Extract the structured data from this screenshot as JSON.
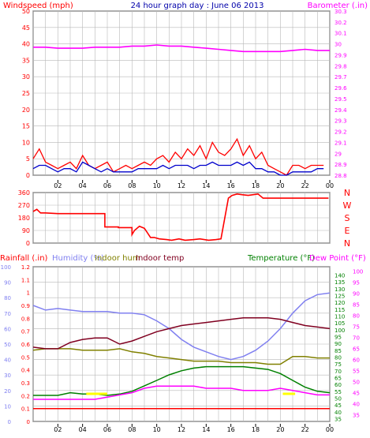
{
  "colors": {
    "windspeed": "#ff0000",
    "windspeed_avg": "#0000cc",
    "barometer": "#ff00ff",
    "direction": "#ff0000",
    "rainfall": "#ff0000",
    "humidity": "#8080f0",
    "indoor_hum": "#808000",
    "indoor_temp": "#800020",
    "temperature": "#008000",
    "dew_point": "#ff00ff",
    "grid": "#b8b8b8",
    "axis": "#000000",
    "title": "#0000aa",
    "rain_markers": "#ffff00"
  },
  "chart_data": [
    {
      "type": "line",
      "title": "24 hour graph day : June 06 2013",
      "left_label": "Windspeed (mph)",
      "right_label": "Barometer (.in)",
      "x_ticks": [
        "02",
        "04",
        "06",
        "08",
        "10",
        "12",
        "14",
        "16",
        "18",
        "20",
        "22",
        "00"
      ],
      "y_left_ticks": [
        "0",
        "5",
        "10",
        "15",
        "20",
        "25",
        "30",
        "35",
        "40",
        "45",
        "50"
      ],
      "y_left_range": [
        0,
        50
      ],
      "y_right_ticks": [
        "28.8",
        "28.9",
        "29",
        "29.1",
        "29.2",
        "29.3",
        "29.4",
        "29.5",
        "29.6",
        "29.7",
        "29.8",
        "29.9",
        "30",
        "30.1",
        "30.2",
        "30.3"
      ],
      "y_right_range": [
        28.8,
        30.3
      ],
      "series": [
        {
          "name": "Windspeed",
          "axis": "left",
          "x": [
            0,
            0.5,
            1,
            1.5,
            2,
            2.5,
            3,
            3.5,
            4,
            4.5,
            5,
            5.5,
            6,
            6.5,
            7,
            7.5,
            8,
            8.5,
            9,
            9.5,
            10,
            10.5,
            11,
            11.5,
            12,
            12.5,
            13,
            13.5,
            14,
            14.5,
            15,
            15.5,
            16,
            16.5,
            17,
            17.5,
            18,
            18.5,
            19,
            19.5,
            20,
            20.5,
            21,
            21.5,
            22,
            22.5,
            23,
            23.5
          ],
          "y": [
            5,
            8,
            4,
            3,
            2,
            3,
            4,
            2,
            6,
            3,
            2,
            3,
            4,
            1,
            2,
            3,
            2,
            3,
            4,
            3,
            5,
            6,
            4,
            7,
            5,
            8,
            6,
            9,
            5,
            10,
            7,
            6,
            8,
            11,
            6,
            9,
            5,
            7,
            3,
            2,
            1,
            0,
            3,
            3,
            2,
            3,
            3,
            3
          ]
        },
        {
          "name": "Windspeed average",
          "axis": "left",
          "x": [
            0,
            0.5,
            1,
            1.5,
            2,
            2.5,
            3,
            3.5,
            4,
            4.5,
            5,
            5.5,
            6,
            6.5,
            7,
            7.5,
            8,
            8.5,
            9,
            9.5,
            10,
            10.5,
            11,
            11.5,
            12,
            12.5,
            13,
            13.5,
            14,
            14.5,
            15,
            15.5,
            16,
            16.5,
            17,
            17.5,
            18,
            18.5,
            19,
            19.5,
            20,
            20.5,
            21,
            21.5,
            22,
            22.5,
            23,
            23.5
          ],
          "y": [
            2,
            3,
            3,
            2,
            1,
            2,
            2,
            1,
            4,
            3,
            2,
            1,
            2,
            1,
            1,
            1,
            1,
            2,
            2,
            2,
            2,
            3,
            2,
            3,
            3,
            3,
            2,
            3,
            3,
            4,
            3,
            3,
            3,
            4,
            3,
            4,
            2,
            2,
            1,
            1,
            0,
            0,
            1,
            1,
            1,
            1,
            2,
            2
          ]
        },
        {
          "name": "Barometer",
          "axis": "right",
          "x": [
            0,
            1,
            2,
            3,
            4,
            5,
            6,
            7,
            8,
            9,
            10,
            11,
            12,
            13,
            14,
            15,
            16,
            17,
            18,
            19,
            20,
            21,
            22,
            23,
            24
          ],
          "y": [
            29.97,
            29.97,
            29.96,
            29.96,
            29.96,
            29.97,
            29.97,
            29.97,
            29.98,
            29.98,
            29.99,
            29.98,
            29.98,
            29.97,
            29.96,
            29.95,
            29.94,
            29.93,
            29.93,
            29.93,
            29.93,
            29.94,
            29.95,
            29.94,
            29.94
          ]
        }
      ]
    },
    {
      "type": "line",
      "title": "",
      "y_left_ticks": [
        "0",
        "90",
        "180",
        "270",
        "360"
      ],
      "y_left_range": [
        0,
        360
      ],
      "y_right_ticks": [
        "N",
        "W",
        "S",
        "E",
        "N"
      ],
      "series": [
        {
          "name": "Wind direction",
          "x": [
            0,
            0.3,
            0.6,
            1,
            2,
            3,
            4,
            5,
            5.8,
            5.8,
            6.9,
            6.9,
            8,
            8,
            8.2,
            8.6,
            9,
            9.2,
            9.5,
            9.8,
            10.2,
            10.8,
            11.2,
            11.8,
            12.3,
            13,
            13.5,
            14.2,
            14.8,
            15.2,
            15.8,
            16.1,
            16.5,
            16.9,
            17.4,
            17.8,
            18.2,
            18.6,
            19.5,
            20,
            21,
            22,
            23,
            23.9
          ],
          "y": [
            225,
            240,
            215,
            215,
            210,
            210,
            210,
            210,
            210,
            115,
            115,
            110,
            110,
            60,
            90,
            120,
            105,
            80,
            40,
            40,
            30,
            25,
            20,
            30,
            20,
            25,
            30,
            20,
            25,
            30,
            320,
            340,
            350,
            345,
            340,
            345,
            350,
            320,
            320,
            320,
            320,
            320,
            320,
            320
          ]
        }
      ]
    },
    {
      "type": "line",
      "title": "",
      "legend": [
        "Rainfall (.in)",
        "Humidity (%)",
        "Indoor hum",
        "Indoor temp",
        "Temperature (°F)",
        "Dew Point (°F)"
      ],
      "x_ticks": [
        "02",
        "04",
        "06",
        "08",
        "10",
        "12",
        "14",
        "16",
        "18",
        "20",
        "22",
        "00"
      ],
      "axes": {
        "humidity": {
          "ticks": [
            "0",
            "10",
            "20",
            "30",
            "40",
            "50",
            "60",
            "70",
            "80",
            "90",
            "100"
          ],
          "range": [
            0,
            100
          ]
        },
        "rainfall": {
          "ticks": [
            "0",
            "0.1",
            "0.2",
            "0.3",
            "0.4",
            "0.5",
            "0.6",
            "0.7",
            "0.8",
            "0.9",
            "1",
            "1.1",
            "1.2"
          ],
          "range": [
            0,
            1.2
          ]
        },
        "temperature": {
          "ticks": [
            "35",
            "40",
            "45",
            "50",
            "55",
            "60",
            "65",
            "70",
            "75",
            "80",
            "85",
            "90",
            "95",
            "100",
            "105",
            "110",
            "115",
            "120",
            "125",
            "130",
            "135",
            "140"
          ],
          "range": [
            33,
            146
          ]
        },
        "dew_point": {
          "ticks": [
            "35",
            "40",
            "45",
            "50",
            "55",
            "60",
            "65",
            "70",
            "75",
            "80",
            "85",
            "90",
            "95",
            "100"
          ],
          "range": [
            32,
            102
          ]
        }
      },
      "series": [
        {
          "name": "Humidity",
          "axis": "humidity",
          "x": [
            0,
            1,
            2,
            3,
            4,
            5,
            6,
            7,
            8,
            9,
            10,
            11,
            12,
            13,
            14,
            15,
            16,
            17,
            18,
            19,
            20,
            21,
            22,
            23,
            24
          ],
          "y": [
            75,
            72,
            73,
            72,
            71,
            71,
            71,
            70,
            70,
            69,
            65,
            60,
            53,
            48,
            45,
            42,
            40,
            42,
            46,
            52,
            60,
            70,
            78,
            82,
            83
          ]
        },
        {
          "name": "Indoor hum",
          "axis": "humidity",
          "x": [
            0,
            1,
            2,
            3,
            4,
            5,
            6,
            7,
            8,
            9,
            10,
            11,
            12,
            13,
            14,
            15,
            16,
            17,
            18,
            19,
            20,
            21,
            22,
            23,
            24
          ],
          "y": [
            46,
            47,
            47,
            47,
            46,
            46,
            46,
            47,
            45,
            44,
            42,
            41,
            40,
            39,
            39,
            39,
            38,
            38,
            38,
            37,
            37,
            42,
            42,
            41,
            41
          ]
        },
        {
          "name": "Indoor temp",
          "axis": "humidity",
          "x": [
            0,
            1,
            2,
            3,
            4,
            5,
            6,
            7,
            8,
            9,
            10,
            11,
            12,
            13,
            14,
            15,
            16,
            17,
            18,
            19,
            20,
            21,
            22,
            23,
            24
          ],
          "y": [
            48,
            47,
            47,
            51,
            53,
            54,
            54,
            50,
            52,
            55,
            58,
            60,
            62,
            63,
            64,
            65,
            66,
            67,
            67,
            67,
            66,
            64,
            62,
            61,
            60
          ]
        },
        {
          "name": "Temperature",
          "axis": "temperature",
          "x": [
            0,
            1,
            2,
            3,
            4,
            5,
            6,
            7,
            8,
            9,
            10,
            11,
            12,
            13,
            14,
            15,
            16,
            17,
            18,
            19,
            20,
            21,
            22,
            23,
            24
          ],
          "y": [
            52,
            52,
            52,
            54,
            53,
            53,
            52,
            53,
            55,
            59,
            63,
            67,
            70,
            72,
            73,
            73,
            73,
            73,
            72,
            71,
            68,
            63,
            58,
            55,
            54
          ]
        },
        {
          "name": "Dew Point",
          "axis": "dew_point",
          "x": [
            0,
            1,
            2,
            3,
            4,
            5,
            6,
            7,
            8,
            9,
            10,
            11,
            12,
            13,
            14,
            15,
            16,
            17,
            18,
            19,
            20,
            21,
            22,
            23,
            24
          ],
          "y": [
            42,
            42,
            42,
            42,
            42,
            42,
            43,
            44,
            45,
            47,
            48,
            48,
            48,
            48,
            47,
            47,
            47,
            46,
            46,
            46,
            47,
            46,
            45,
            44,
            44
          ]
        },
        {
          "name": "Rainfall",
          "axis": "rainfall",
          "x": [
            0,
            24
          ],
          "y": [
            0.1,
            0.1
          ]
        }
      ]
    }
  ]
}
